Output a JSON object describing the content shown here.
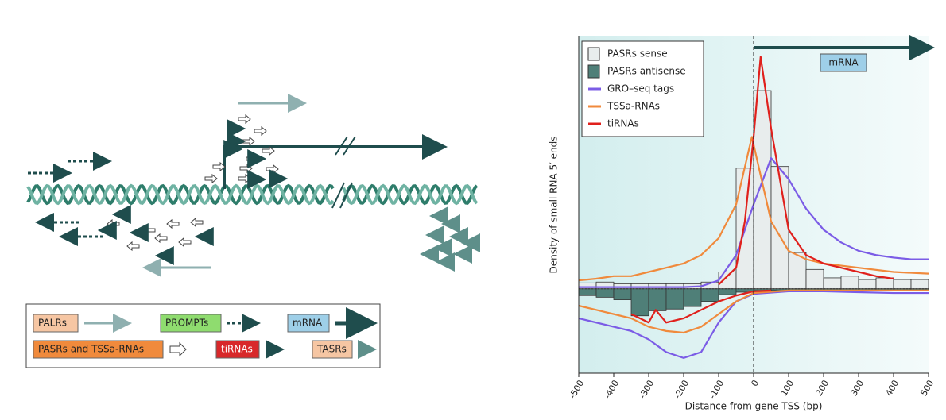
{
  "diagram": {
    "legend": {
      "palrs": "PALRs",
      "prompts": "PROMPTs",
      "mrna": "mRNA",
      "pasrs_tssa": "PASRs and TSSa-RNAs",
      "tirnas": "tiRNAs",
      "tasrs": "TASRs"
    }
  },
  "chart_data": {
    "type": "histogram-lines",
    "y_label": "Density of small RNA 5′ ends",
    "x_label": "Distance from gene TSS (bp)",
    "annotation": "mRNA",
    "xlim": [
      -500,
      500
    ],
    "xticks": [
      -500,
      -400,
      -300,
      -200,
      -100,
      0,
      100,
      200,
      300,
      400,
      500
    ],
    "ylim": [
      -1,
      3
    ],
    "bins": [
      -500,
      -450,
      -400,
      -350,
      -300,
      -250,
      -200,
      -150,
      -100,
      -50,
      0,
      50,
      100,
      150,
      200,
      250,
      300,
      350,
      400,
      450,
      500
    ],
    "bars": [
      {
        "name": "PASRs sense",
        "color": "#e8eded",
        "values": [
          0.07,
          0.08,
          0.06,
          0.06,
          0.06,
          0.06,
          0.06,
          0.08,
          0.2,
          1.43,
          2.35,
          1.45,
          0.43,
          0.23,
          0.13,
          0.15,
          0.11,
          0.13,
          0.11,
          0.11
        ]
      },
      {
        "name": "PASRs antisense",
        "color": "#4f7f78",
        "values": [
          -0.08,
          -0.1,
          -0.13,
          -0.32,
          -0.26,
          -0.24,
          -0.21,
          -0.15,
          -0.07,
          -0.04,
          -0.02,
          -0.02,
          -0.02,
          -0.02,
          -0.02,
          -0.02,
          -0.02,
          -0.02,
          -0.02,
          -0.02
        ]
      }
    ],
    "series": [
      {
        "name": "GRO–seq tags",
        "color": "#7b5ce6",
        "x": [
          -500,
          -400,
          -300,
          -200,
          -150,
          -100,
          -50,
          0,
          50,
          100,
          150,
          200,
          250,
          300,
          350,
          400,
          450,
          500
        ],
        "values": [
          0.02,
          0.02,
          0.02,
          0.02,
          0.03,
          0.1,
          0.4,
          1.0,
          1.55,
          1.3,
          0.95,
          0.7,
          0.55,
          0.45,
          0.4,
          0.37,
          0.35,
          0.35
        ],
        "x_antisense": [
          -500,
          -450,
          -400,
          -350,
          -300,
          -250,
          -200,
          -150,
          -100,
          -50,
          0,
          100,
          200,
          300,
          400,
          500
        ],
        "values_antisense": [
          -0.35,
          -0.4,
          -0.45,
          -0.5,
          -0.6,
          -0.75,
          -0.82,
          -0.75,
          -0.4,
          -0.15,
          -0.06,
          -0.03,
          -0.03,
          -0.04,
          -0.05,
          -0.05
        ]
      },
      {
        "name": "TSSa-RNAs",
        "color": "#f08a3c",
        "x": [
          -500,
          -450,
          -400,
          -350,
          -300,
          -250,
          -200,
          -150,
          -100,
          -50,
          -5,
          50,
          100,
          150,
          200,
          300,
          400,
          500
        ],
        "values": [
          0.1,
          0.12,
          0.15,
          0.15,
          0.2,
          0.25,
          0.3,
          0.4,
          0.6,
          1.0,
          1.8,
          0.8,
          0.45,
          0.35,
          0.3,
          0.25,
          0.2,
          0.18
        ],
        "x_antisense": [
          -500,
          -450,
          -400,
          -350,
          -300,
          -250,
          -200,
          -150,
          -100,
          -50,
          0,
          100,
          200,
          300,
          400,
          500
        ],
        "values_antisense": [
          -0.2,
          -0.25,
          -0.3,
          -0.35,
          -0.45,
          -0.5,
          -0.52,
          -0.45,
          -0.3,
          -0.15,
          -0.05,
          -0.02,
          -0.02,
          -0.02,
          -0.02,
          -0.02
        ]
      },
      {
        "name": "tiRNAs",
        "color": "#e0201c",
        "x": [
          -100,
          -50,
          -25,
          0,
          20,
          50,
          100,
          150,
          200,
          250,
          300,
          350,
          400
        ],
        "values": [
          0.05,
          0.25,
          0.8,
          1.8,
          2.75,
          1.9,
          0.7,
          0.4,
          0.3,
          0.25,
          0.2,
          0.15,
          0.12
        ],
        "x_antisense": [
          -350,
          -300,
          -280,
          -250,
          -200,
          -150,
          -100,
          -50,
          0,
          50
        ],
        "values_antisense": [
          -0.3,
          -0.4,
          -0.25,
          -0.4,
          -0.35,
          -0.25,
          -0.15,
          -0.08,
          -0.03,
          -0.02
        ]
      }
    ]
  }
}
